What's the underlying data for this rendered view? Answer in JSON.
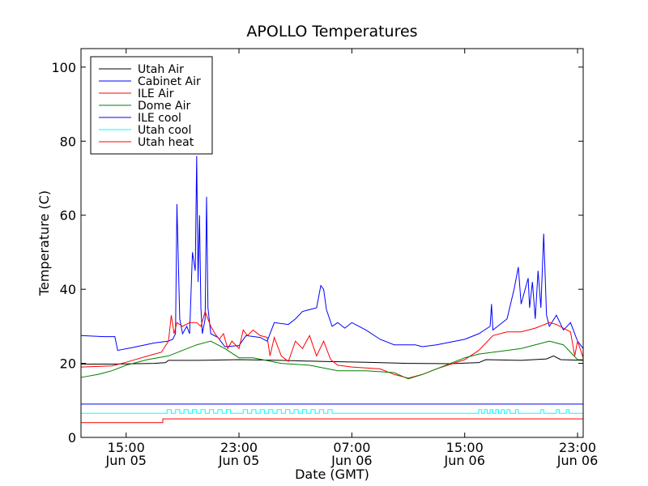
{
  "chart_data": {
    "type": "line",
    "title": "APOLLO Temperatures",
    "xlabel": "Date (GMT)",
    "ylabel": "Temperature (C)",
    "x_unit": "hours since Jun 05 00:00 GMT",
    "xlim": [
      11.8,
      47.4
    ],
    "ylim": [
      0,
      105
    ],
    "yticks": [
      0,
      20,
      40,
      60,
      80,
      100
    ],
    "xticks": [
      {
        "x": 15,
        "line1": "15:00",
        "line2": "Jun 05"
      },
      {
        "x": 23,
        "line1": "23:00",
        "line2": "Jun 05"
      },
      {
        "x": 31,
        "line1": "07:00",
        "line2": "Jun 06"
      },
      {
        "x": 39,
        "line1": "15:00",
        "line2": "Jun 06"
      },
      {
        "x": 47,
        "line1": "23:00",
        "line2": "Jun 06"
      }
    ],
    "legend_location": "top-left",
    "grid": false,
    "series": [
      {
        "name": "Utah Air",
        "color": "#000000",
        "points": [
          [
            11.8,
            19.8
          ],
          [
            14,
            19.8
          ],
          [
            17,
            20
          ],
          [
            17.8,
            20.2
          ],
          [
            18,
            20.8
          ],
          [
            20,
            20.8
          ],
          [
            23,
            21
          ],
          [
            26,
            20.8
          ],
          [
            29,
            20.5
          ],
          [
            32,
            20.3
          ],
          [
            35,
            20
          ],
          [
            38,
            19.9
          ],
          [
            40,
            20.2
          ],
          [
            40.5,
            21
          ],
          [
            43,
            20.8
          ],
          [
            44.8,
            21.2
          ],
          [
            45.3,
            22
          ],
          [
            45.8,
            21
          ],
          [
            47.4,
            20.8
          ]
        ]
      },
      {
        "name": "Cabinet Air",
        "color": "#0000ff",
        "points": [
          [
            11.8,
            27.5
          ],
          [
            13.5,
            27.2
          ],
          [
            14.2,
            27.2
          ],
          [
            14.4,
            23.5
          ],
          [
            15.5,
            24.3
          ],
          [
            17,
            25.5
          ],
          [
            18,
            26
          ],
          [
            18.3,
            26.5
          ],
          [
            18.5,
            28
          ],
          [
            18.6,
            63
          ],
          [
            18.8,
            32
          ],
          [
            19,
            28
          ],
          [
            19.3,
            30
          ],
          [
            19.5,
            28
          ],
          [
            19.7,
            50
          ],
          [
            19.9,
            45
          ],
          [
            20,
            76
          ],
          [
            20.1,
            42
          ],
          [
            20.2,
            60
          ],
          [
            20.3,
            35
          ],
          [
            20.4,
            28
          ],
          [
            20.6,
            32
          ],
          [
            20.7,
            65
          ],
          [
            20.8,
            35
          ],
          [
            21,
            28
          ],
          [
            21.5,
            27
          ],
          [
            22,
            24.5
          ],
          [
            23,
            24.8
          ],
          [
            23.5,
            27.5
          ],
          [
            24.5,
            27
          ],
          [
            25,
            26
          ],
          [
            25.5,
            31
          ],
          [
            26.5,
            30.5
          ],
          [
            27,
            32
          ],
          [
            27.5,
            34
          ],
          [
            28,
            34.5
          ],
          [
            28.5,
            35
          ],
          [
            28.8,
            41
          ],
          [
            29,
            40
          ],
          [
            29.2,
            34.5
          ],
          [
            29.6,
            30
          ],
          [
            30,
            31
          ],
          [
            30.5,
            29.5
          ],
          [
            31,
            31
          ],
          [
            32,
            29
          ],
          [
            33,
            26.5
          ],
          [
            34,
            25
          ],
          [
            35.5,
            25
          ],
          [
            36,
            24.5
          ],
          [
            37,
            25
          ],
          [
            39,
            26.5
          ],
          [
            40,
            28
          ],
          [
            40.8,
            30
          ],
          [
            40.9,
            36
          ],
          [
            41,
            29
          ],
          [
            42,
            32
          ],
          [
            42.5,
            40
          ],
          [
            42.8,
            46
          ],
          [
            43,
            36
          ],
          [
            43.5,
            43
          ],
          [
            43.6,
            35
          ],
          [
            43.8,
            42
          ],
          [
            44,
            32
          ],
          [
            44.2,
            45
          ],
          [
            44.4,
            35
          ],
          [
            44.6,
            55
          ],
          [
            44.8,
            33
          ],
          [
            45,
            30
          ],
          [
            45.5,
            33
          ],
          [
            46,
            29
          ],
          [
            46.5,
            31
          ],
          [
            47,
            26
          ],
          [
            47.4,
            24
          ]
        ]
      },
      {
        "name": "ILE Air",
        "color": "#ff0000",
        "points": [
          [
            11.8,
            19
          ],
          [
            14,
            19.3
          ],
          [
            15,
            20.3
          ],
          [
            17,
            22.5
          ],
          [
            17.5,
            23
          ],
          [
            18,
            26
          ],
          [
            18.2,
            33
          ],
          [
            18.4,
            28
          ],
          [
            18.6,
            31
          ],
          [
            19,
            30
          ],
          [
            19.5,
            31
          ],
          [
            20,
            31
          ],
          [
            20.3,
            30
          ],
          [
            20.6,
            34
          ],
          [
            21,
            30
          ],
          [
            21.3,
            28
          ],
          [
            21.6,
            26.5
          ],
          [
            21.9,
            28
          ],
          [
            22.2,
            24
          ],
          [
            22.5,
            26
          ],
          [
            23,
            24
          ],
          [
            23.3,
            29
          ],
          [
            23.6,
            27.5
          ],
          [
            24,
            29
          ],
          [
            24.5,
            27.5
          ],
          [
            25,
            27
          ],
          [
            25.2,
            22
          ],
          [
            25.5,
            27
          ],
          [
            26,
            22
          ],
          [
            26.5,
            20.5
          ],
          [
            27,
            26
          ],
          [
            27.5,
            24
          ],
          [
            28,
            27.5
          ],
          [
            28.5,
            22
          ],
          [
            29,
            26
          ],
          [
            29.5,
            21
          ],
          [
            30,
            19.5
          ],
          [
            31,
            19
          ],
          [
            33,
            18.5
          ],
          [
            34,
            17
          ],
          [
            35,
            16
          ],
          [
            36,
            17
          ],
          [
            37,
            18.5
          ],
          [
            39,
            21
          ],
          [
            40,
            23.5
          ],
          [
            41,
            27.5
          ],
          [
            42,
            28.5
          ],
          [
            43,
            28.5
          ],
          [
            44,
            29.5
          ],
          [
            45,
            31
          ],
          [
            45.5,
            30.5
          ],
          [
            46,
            29.5
          ],
          [
            46.5,
            28.5
          ],
          [
            46.8,
            22
          ],
          [
            47,
            26
          ],
          [
            47.4,
            21.5
          ]
        ]
      },
      {
        "name": "Dome Air",
        "color": "#008000",
        "points": [
          [
            11.8,
            16.2
          ],
          [
            13,
            17
          ],
          [
            14,
            18
          ],
          [
            15,
            19.5
          ],
          [
            16.5,
            21
          ],
          [
            18,
            22
          ],
          [
            19,
            23.5
          ],
          [
            20,
            25
          ],
          [
            21,
            26
          ],
          [
            22,
            24
          ],
          [
            23,
            21.5
          ],
          [
            24,
            21.5
          ],
          [
            26,
            20
          ],
          [
            28,
            19.5
          ],
          [
            30,
            18
          ],
          [
            32,
            18
          ],
          [
            34,
            17.5
          ],
          [
            35,
            15.8
          ],
          [
            36,
            17
          ],
          [
            37,
            18.5
          ],
          [
            38,
            20
          ],
          [
            39,
            21.5
          ],
          [
            40,
            22.5
          ],
          [
            41,
            23
          ],
          [
            42,
            23.5
          ],
          [
            43,
            24
          ],
          [
            44,
            25
          ],
          [
            45,
            26
          ],
          [
            46,
            25
          ],
          [
            47,
            21
          ],
          [
            47.4,
            21
          ]
        ]
      },
      {
        "name": "ILE cool",
        "color": "#0000ff",
        "points": [
          [
            11.8,
            9
          ],
          [
            47.4,
            9
          ]
        ]
      },
      {
        "name": "Utah cool",
        "color": "#00ffff",
        "points": [
          [
            11.8,
            6.5
          ],
          [
            17.9,
            6.5
          ],
          [
            17.9,
            7.5
          ],
          [
            18.2,
            7.5
          ],
          [
            18.2,
            6.5
          ],
          [
            18.5,
            6.5
          ],
          [
            18.5,
            7.5
          ],
          [
            18.8,
            7.5
          ],
          [
            18.8,
            6.5
          ],
          [
            19.1,
            6.5
          ],
          [
            19.1,
            7.5
          ],
          [
            19.4,
            7.5
          ],
          [
            19.4,
            6.5
          ],
          [
            19.7,
            6.5
          ],
          [
            19.7,
            7.5
          ],
          [
            20.0,
            7.5
          ],
          [
            20.0,
            6.5
          ],
          [
            20.3,
            6.5
          ],
          [
            20.3,
            7.5
          ],
          [
            20.6,
            7.5
          ],
          [
            20.6,
            6.5
          ],
          [
            20.9,
            6.5
          ],
          [
            20.9,
            7.5
          ],
          [
            21.2,
            7.5
          ],
          [
            21.2,
            6.5
          ],
          [
            21.5,
            6.5
          ],
          [
            21.5,
            7.5
          ],
          [
            21.8,
            7.5
          ],
          [
            21.8,
            6.5
          ],
          [
            22.1,
            6.5
          ],
          [
            22.1,
            7.5
          ],
          [
            22.4,
            7.5
          ],
          [
            22.4,
            6.5
          ],
          [
            23.3,
            6.5
          ],
          [
            23.3,
            7.5
          ],
          [
            23.6,
            7.5
          ],
          [
            23.6,
            6.5
          ],
          [
            23.9,
            6.5
          ],
          [
            23.9,
            7.5
          ],
          [
            24.2,
            7.5
          ],
          [
            24.2,
            6.5
          ],
          [
            24.5,
            6.5
          ],
          [
            24.5,
            7.5
          ],
          [
            24.8,
            7.5
          ],
          [
            24.8,
            6.5
          ],
          [
            25.1,
            6.5
          ],
          [
            25.1,
            7.5
          ],
          [
            25.4,
            7.5
          ],
          [
            25.4,
            6.5
          ],
          [
            25.7,
            6.5
          ],
          [
            25.7,
            7.5
          ],
          [
            26.0,
            7.5
          ],
          [
            26.0,
            6.5
          ],
          [
            26.3,
            6.5
          ],
          [
            26.3,
            7.5
          ],
          [
            26.6,
            7.5
          ],
          [
            26.6,
            6.5
          ],
          [
            26.9,
            6.5
          ],
          [
            26.9,
            7.5
          ],
          [
            27.2,
            7.5
          ],
          [
            27.2,
            6.5
          ],
          [
            27.5,
            6.5
          ],
          [
            27.5,
            7.5
          ],
          [
            27.8,
            7.5
          ],
          [
            27.8,
            6.5
          ],
          [
            28.1,
            6.5
          ],
          [
            28.1,
            7.5
          ],
          [
            28.4,
            7.5
          ],
          [
            28.4,
            6.5
          ],
          [
            28.7,
            6.5
          ],
          [
            28.7,
            7.5
          ],
          [
            29.0,
            7.5
          ],
          [
            29.0,
            6.5
          ],
          [
            29.3,
            6.5
          ],
          [
            29.3,
            7.5
          ],
          [
            29.6,
            7.5
          ],
          [
            29.6,
            6.5
          ],
          [
            40.0,
            6.5
          ],
          [
            40.0,
            7.5
          ],
          [
            40.2,
            7.5
          ],
          [
            40.2,
            6.5
          ],
          [
            40.4,
            6.5
          ],
          [
            40.4,
            7.5
          ],
          [
            40.6,
            7.5
          ],
          [
            40.6,
            6.5
          ],
          [
            40.8,
            6.5
          ],
          [
            40.8,
            7.5
          ],
          [
            41.0,
            7.5
          ],
          [
            41.0,
            6.5
          ],
          [
            41.2,
            6.5
          ],
          [
            41.2,
            7.5
          ],
          [
            41.4,
            7.5
          ],
          [
            41.4,
            6.5
          ],
          [
            41.6,
            6.5
          ],
          [
            41.6,
            7.5
          ],
          [
            41.8,
            7.5
          ],
          [
            41.8,
            6.5
          ],
          [
            42.0,
            6.5
          ],
          [
            42.0,
            7.5
          ],
          [
            42.2,
            7.5
          ],
          [
            42.2,
            6.5
          ],
          [
            42.6,
            6.5
          ],
          [
            42.6,
            7.5
          ],
          [
            42.8,
            7.5
          ],
          [
            42.8,
            6.5
          ],
          [
            44.4,
            6.5
          ],
          [
            44.4,
            7.5
          ],
          [
            44.6,
            7.5
          ],
          [
            44.6,
            6.5
          ],
          [
            45.5,
            6.5
          ],
          [
            45.5,
            7.5
          ],
          [
            45.7,
            7.5
          ],
          [
            45.7,
            6.5
          ],
          [
            46.2,
            6.5
          ],
          [
            46.2,
            7.5
          ],
          [
            46.4,
            7.5
          ],
          [
            46.4,
            6.5
          ],
          [
            47.4,
            6.5
          ]
        ]
      },
      {
        "name": "Utah heat",
        "color": "#ff0000",
        "points": [
          [
            11.8,
            4
          ],
          [
            17.6,
            4
          ],
          [
            17.6,
            5
          ],
          [
            47.4,
            5
          ]
        ]
      }
    ]
  }
}
